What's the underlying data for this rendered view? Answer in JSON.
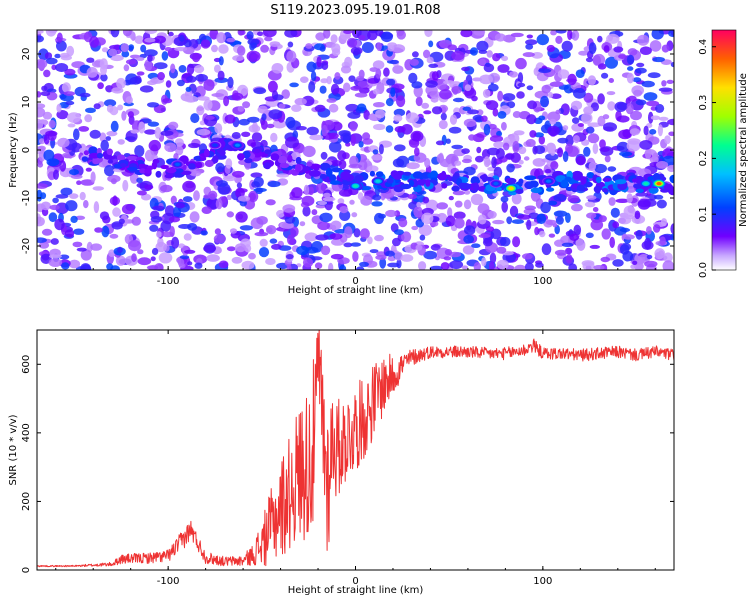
{
  "title": "S119.2023.095.19.01.R08",
  "chart_data": [
    {
      "type": "heatmap",
      "xlabel": "Height of straight line (km)",
      "ylabel": "Frequency (Hz)",
      "xlim": [
        -170,
        170
      ],
      "ylim": [
        -25,
        25
      ],
      "xticks": [
        -100,
        0,
        100
      ],
      "yticks": [
        -20,
        -10,
        0,
        10,
        20
      ],
      "colorbar": {
        "label": "Normalized spectral amplitude",
        "range": [
          0.0,
          0.43
        ],
        "ticks": [
          "0.0",
          "0.1",
          "0.2",
          "0.3",
          "0.4"
        ],
        "tick_values": [
          0.0,
          0.1,
          0.2,
          0.3,
          0.4
        ],
        "colors": [
          "#ffffff",
          "#7000ff",
          "#0040ff",
          "#00c0ff",
          "#00ff90",
          "#a0ff00",
          "#ffe000",
          "#ff6000",
          "#ff0040"
        ]
      },
      "signal_track": [
        {
          "x": -135,
          "y": -1.5
        },
        {
          "x": -120,
          "y": -3
        },
        {
          "x": -100,
          "y": -4
        },
        {
          "x": -85,
          "y": -3
        },
        {
          "x": -70,
          "y": 0.5
        },
        {
          "x": -55,
          "y": -1
        },
        {
          "x": -40,
          "y": -2.5
        },
        {
          "x": -20,
          "y": -4.5
        },
        {
          "x": 0,
          "y": -6.5
        },
        {
          "x": 30,
          "y": -6.5
        },
        {
          "x": 60,
          "y": -6.5
        },
        {
          "x": 85,
          "y": -7.5
        },
        {
          "x": 110,
          "y": -6.5
        },
        {
          "x": 140,
          "y": -7
        },
        {
          "x": 170,
          "y": -7
        }
      ],
      "peaks": [
        {
          "x": 83,
          "y": -8,
          "amp": 0.33
        },
        {
          "x": 162,
          "y": -7,
          "amp": 0.38
        },
        {
          "x": 0,
          "y": -7.5,
          "amp": 0.2
        },
        {
          "x": 12,
          "y": -6.5,
          "amp": 0.18
        },
        {
          "x": 155,
          "y": -7,
          "amp": 0.2
        },
        {
          "x": -63,
          "y": 1,
          "amp": 0.14
        },
        {
          "x": -95,
          "y": -3,
          "amp": 0.12
        },
        {
          "x": 103,
          "y": -6.5,
          "amp": 0.13
        },
        {
          "x": 75,
          "y": -7,
          "amp": 0.12
        },
        {
          "x": -75,
          "y": 1,
          "amp": 0.1
        }
      ]
    },
    {
      "type": "line",
      "xlabel": "Height of straight line (km)",
      "ylabel": "SNR (10 * v/v)",
      "xlim": [
        -170,
        170
      ],
      "ylim": [
        0,
        700
      ],
      "xticks": [
        -100,
        0,
        100
      ],
      "yticks": [
        0,
        200,
        400,
        600
      ],
      "color": "#ee3333",
      "series": [
        {
          "x": [
            -170,
            -150,
            -130,
            -125,
            -110,
            -100,
            -92,
            -88,
            -80,
            -70,
            -60,
            -55,
            -50,
            -45,
            -40,
            -35,
            -30,
            -25,
            -22,
            -20,
            -18,
            -15,
            -12,
            -10,
            -5,
            0,
            5,
            10,
            15,
            20,
            25,
            30,
            40,
            50,
            60,
            70,
            80,
            90,
            95,
            100,
            110,
            120,
            130,
            140,
            150,
            160,
            170
          ],
          "y": [
            12,
            12,
            18,
            35,
            38,
            45,
            95,
            125,
            40,
            28,
            30,
            50,
            90,
            150,
            210,
            260,
            330,
            360,
            420,
            640,
            520,
            300,
            420,
            380,
            410,
            440,
            470,
            520,
            560,
            580,
            605,
            625,
            640,
            640,
            640,
            635,
            635,
            645,
            660,
            635,
            635,
            630,
            635,
            640,
            630,
            640,
            630
          ]
        }
      ],
      "noise": [
        2,
        2,
        6,
        14,
        16,
        18,
        30,
        30,
        18,
        14,
        16,
        30,
        70,
        110,
        150,
        170,
        200,
        230,
        260,
        120,
        220,
        240,
        170,
        150,
        130,
        130,
        120,
        110,
        90,
        60,
        40,
        25,
        18,
        18,
        18,
        18,
        18,
        20,
        20,
        18,
        18,
        18,
        18,
        18,
        18,
        18,
        18
      ]
    }
  ]
}
